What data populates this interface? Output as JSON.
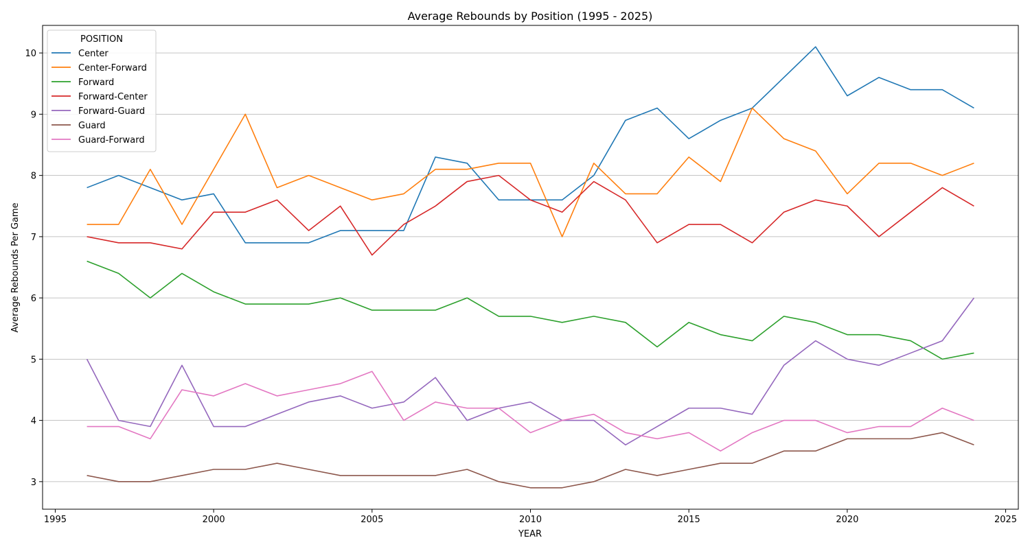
{
  "chart_data": {
    "type": "line",
    "title": "Average Rebounds by Position (1995 - 2025)",
    "xlabel": "YEAR",
    "ylabel": "Average Rebounds Per Game",
    "xlim": [
      1994.6,
      2025.4
    ],
    "ylim": [
      2.55,
      10.45
    ],
    "xticks": [
      1995,
      2000,
      2005,
      2010,
      2015,
      2020,
      2025
    ],
    "yticks": [
      3,
      4,
      5,
      6,
      7,
      8,
      9,
      10
    ],
    "grid": "horizontal",
    "legend": {
      "title": "POSITION",
      "placement": "top-left"
    },
    "x": [
      1996,
      1997,
      1998,
      1999,
      2000,
      2001,
      2002,
      2003,
      2004,
      2005,
      2006,
      2007,
      2008,
      2009,
      2010,
      2011,
      2012,
      2013,
      2014,
      2015,
      2016,
      2017,
      2018,
      2019,
      2020,
      2021,
      2022,
      2023,
      2024
    ],
    "series": [
      {
        "name": "Center",
        "color": "#1f77b4",
        "values": [
          7.8,
          8.0,
          7.8,
          7.6,
          7.7,
          6.9,
          6.9,
          6.9,
          7.1,
          7.1,
          7.1,
          8.3,
          8.2,
          7.6,
          7.6,
          7.6,
          8.0,
          8.9,
          9.1,
          8.6,
          8.9,
          9.1,
          9.6,
          10.1,
          9.3,
          9.6,
          9.4,
          9.4,
          9.1
        ]
      },
      {
        "name": "Center-Forward",
        "color": "#ff7f0e",
        "values": [
          7.2,
          7.2,
          8.1,
          7.2,
          8.1,
          9.0,
          7.8,
          8.0,
          7.8,
          7.6,
          7.7,
          8.1,
          8.1,
          8.2,
          8.2,
          7.0,
          8.2,
          7.7,
          7.7,
          8.3,
          7.9,
          9.1,
          8.6,
          8.4,
          7.7,
          8.2,
          8.2,
          8.0,
          8.2
        ]
      },
      {
        "name": "Forward",
        "color": "#2ca02c",
        "values": [
          6.6,
          6.4,
          6.0,
          6.4,
          6.1,
          5.9,
          5.9,
          5.9,
          6.0,
          5.8,
          5.8,
          5.8,
          6.0,
          5.7,
          5.7,
          5.6,
          5.7,
          5.6,
          5.2,
          5.6,
          5.4,
          5.3,
          5.7,
          5.6,
          5.4,
          5.4,
          5.3,
          5.0,
          5.1
        ]
      },
      {
        "name": "Forward-Center",
        "color": "#d62728",
        "values": [
          7.0,
          6.9,
          6.9,
          6.8,
          7.4,
          7.4,
          7.6,
          7.1,
          7.5,
          6.7,
          7.2,
          7.5,
          7.9,
          8.0,
          7.6,
          7.4,
          7.9,
          7.6,
          6.9,
          7.2,
          7.2,
          6.9,
          7.4,
          7.6,
          7.5,
          7.0,
          7.4,
          7.8,
          7.5
        ]
      },
      {
        "name": "Forward-Guard",
        "color": "#9467bd",
        "values": [
          5.0,
          4.0,
          3.9,
          4.9,
          3.9,
          3.9,
          4.1,
          4.3,
          4.4,
          4.2,
          4.3,
          4.7,
          4.0,
          4.2,
          4.3,
          4.0,
          4.0,
          3.6,
          3.9,
          4.2,
          4.2,
          4.1,
          4.9,
          5.3,
          5.0,
          4.9,
          5.1,
          5.3,
          6.0
        ]
      },
      {
        "name": "Guard",
        "color": "#8c564b",
        "values": [
          3.1,
          3.0,
          3.0,
          3.1,
          3.2,
          3.2,
          3.3,
          3.2,
          3.1,
          3.1,
          3.1,
          3.1,
          3.2,
          3.0,
          2.9,
          2.9,
          3.0,
          3.2,
          3.1,
          3.2,
          3.3,
          3.3,
          3.5,
          3.5,
          3.7,
          3.7,
          3.7,
          3.8,
          3.6
        ]
      },
      {
        "name": "Guard-Forward",
        "color": "#e377c2",
        "values": [
          3.9,
          3.9,
          3.7,
          4.5,
          4.4,
          4.6,
          4.4,
          4.5,
          4.6,
          4.8,
          4.0,
          4.3,
          4.2,
          4.2,
          3.8,
          4.0,
          4.1,
          3.8,
          3.7,
          3.8,
          3.5,
          3.8,
          4.0,
          4.0,
          3.8,
          3.9,
          3.9,
          4.2,
          4.0
        ]
      }
    ]
  }
}
